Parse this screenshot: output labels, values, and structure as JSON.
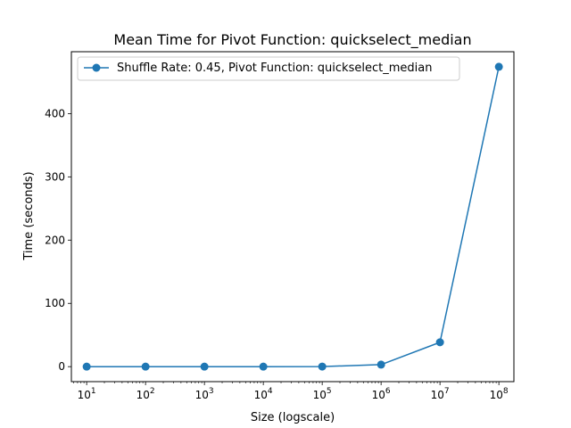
{
  "chart_data": {
    "type": "line",
    "title": "Mean Time for Pivot Function: quickselect_median",
    "xlabel": "Size (logscale)",
    "ylabel": "Time (seconds)",
    "x_scale": "log",
    "xlim": [
      5.5,
      180000000
    ],
    "ylim": [
      -23.7,
      497.8
    ],
    "grid": false,
    "legend_position": "upper-left",
    "x_ticks": [
      {
        "value": 10,
        "base": "10",
        "exp": "1"
      },
      {
        "value": 100,
        "base": "10",
        "exp": "2"
      },
      {
        "value": 1000,
        "base": "10",
        "exp": "3"
      },
      {
        "value": 10000,
        "base": "10",
        "exp": "4"
      },
      {
        "value": 100000,
        "base": "10",
        "exp": "5"
      },
      {
        "value": 1000000,
        "base": "10",
        "exp": "6"
      },
      {
        "value": 10000000,
        "base": "10",
        "exp": "7"
      },
      {
        "value": 100000000,
        "base": "10",
        "exp": "8"
      }
    ],
    "y_ticks": [
      {
        "value": 0,
        "label": "0"
      },
      {
        "value": 100,
        "label": "100"
      },
      {
        "value": 200,
        "label": "200"
      },
      {
        "value": 300,
        "label": "300"
      },
      {
        "value": 400,
        "label": "400"
      }
    ],
    "series": [
      {
        "name": "Shuffle Rate: 0.45, Pivot Function: quickselect_median",
        "color": "#1f77b4",
        "marker": "circle",
        "x": [
          10,
          100,
          1000,
          10000,
          100000,
          1000000,
          10000000,
          100000000
        ],
        "y": [
          0.0,
          0.0,
          0.0,
          0.0,
          0.1,
          3.2,
          38.5,
          474.0
        ]
      }
    ]
  }
}
